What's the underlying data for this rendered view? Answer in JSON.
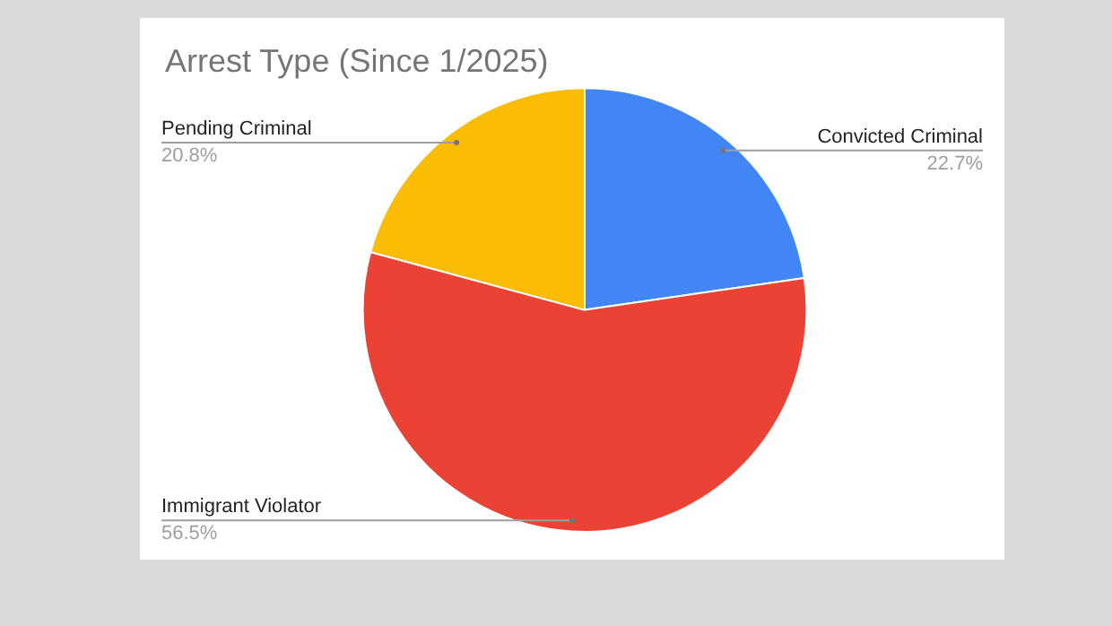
{
  "chart_data": {
    "type": "pie",
    "title": "Arrest Type (Since 1/2025)",
    "categories": [
      "Convicted Criminal",
      "Immigrant Violator",
      "Pending Criminal"
    ],
    "values": [
      22.7,
      56.5,
      20.8
    ],
    "value_labels": [
      "22.7%",
      "56.5%",
      "20.8%"
    ],
    "colors": [
      "#4285f4",
      "#ea4335",
      "#fbbc04"
    ],
    "legend": false
  }
}
